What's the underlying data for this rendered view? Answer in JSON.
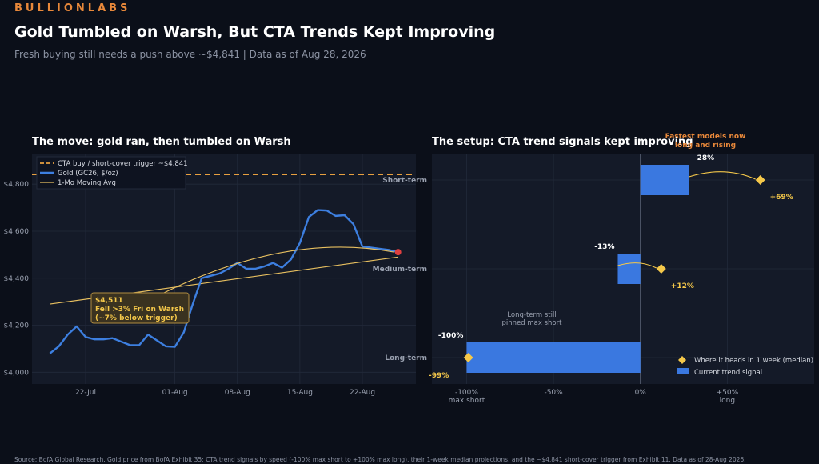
{
  "header": {
    "brand": "BULLIONLABS",
    "title": "Gold Tumbled on Warsh, But CTA Trends Kept Improving",
    "subtitle": "Fresh buying still needs a push above ~$4,841  |  Data as of Aug 28, 2026"
  },
  "footer": {
    "source": "Source: BofA Global Research. Gold price from BofA Exhibit 35; CTA trend signals by speed (-100% max short to +100% max long), their 1-week median projections, and the ~$4,841 short-cover trigger from Exhibit 11. Data as of 28-Aug 2026."
  },
  "colors": {
    "gold_line": "#3d7fe0",
    "moving_avg": "#e8c060",
    "trigger": "#e8a040",
    "bar": "#3a78e0",
    "marker": "#f5c84a",
    "last_point": "#e04040",
    "brand": "#e8883a"
  },
  "chart_data": [
    {
      "type": "line",
      "title": "The move: gold ran, then tumbled on Warsh",
      "legend": [
        "CTA buy / short-cover trigger ~$4,841",
        "Gold (GC26, $/oz)",
        "1-Mo Moving Avg"
      ],
      "legend_position": "top-left",
      "grid": true,
      "x_ticks": [
        "22-Jul",
        "01-Aug",
        "08-Aug",
        "15-Aug",
        "22-Aug"
      ],
      "x_tick_days": [
        22,
        32,
        39,
        46,
        53
      ],
      "xlim": [
        16,
        59
      ],
      "y_ticks": [
        4000,
        4200,
        4400,
        4600,
        4800
      ],
      "y_tick_labels": [
        "$4,000",
        "$4,200",
        "$4,400",
        "$4,600",
        "$4,800"
      ],
      "ylim": [
        3950,
        4930
      ],
      "trigger": 4841,
      "series": [
        {
          "name": "Gold (GC26, $/oz)",
          "x": [
            18,
            19,
            20,
            21,
            22,
            23,
            24,
            25,
            26,
            27,
            28,
            29,
            30,
            31,
            32,
            33,
            34,
            35,
            36,
            37,
            38,
            39,
            40,
            41,
            42,
            43,
            44,
            45,
            46,
            47,
            48,
            49,
            50,
            51,
            52,
            53,
            54,
            55,
            56,
            57
          ],
          "values": [
            4080,
            4110,
            4160,
            4195,
            4150,
            4140,
            4140,
            4145,
            4130,
            4115,
            4115,
            4160,
            4135,
            4110,
            4108,
            4170,
            4290,
            4400,
            4410,
            4420,
            4440,
            4465,
            4440,
            4440,
            4450,
            4465,
            4445,
            4480,
            4550,
            4660,
            4690,
            4688,
            4665,
            4668,
            4630,
            4535,
            4530,
            4525,
            4520,
            4511
          ]
        },
        {
          "name": "1-Mo Moving Avg",
          "x": [
            18,
            57
          ],
          "values": [
            4290,
            4490
          ]
        }
      ],
      "annotation": {
        "lines": [
          "$4,511",
          "Fell >3% Fri on Warsh",
          "(~7% below trigger)"
        ]
      }
    },
    {
      "type": "bar",
      "title": "The setup: CTA trend signals kept improving",
      "orientation": "horizontal",
      "categories": [
        "Short-term",
        "Medium-term",
        "Long-term"
      ],
      "xlim": [
        -120,
        100
      ],
      "x_ticks": [
        -100,
        -50,
        0,
        50
      ],
      "x_tick_labels": [
        "-100%",
        "-50%",
        "0%",
        "+50%"
      ],
      "x_tick_sublabels": [
        "max short",
        "",
        "",
        "long"
      ],
      "legend": [
        "Where it heads in 1 week (median)",
        "Current trend signal"
      ],
      "legend_position": "bottom-right",
      "series": [
        {
          "name": "Current trend signal",
          "values": [
            28,
            -13,
            -100
          ],
          "labels": [
            "28%",
            "-13%",
            "-100%"
          ]
        },
        {
          "name": "Where it heads in 1 week (median)",
          "values": [
            69,
            12,
            -99
          ],
          "labels": [
            "+69%",
            "+12%",
            "-99%"
          ]
        }
      ],
      "annotations": {
        "top": "Fastest models now long and rising",
        "longterm": "Long-term still pinned max short"
      }
    }
  ]
}
